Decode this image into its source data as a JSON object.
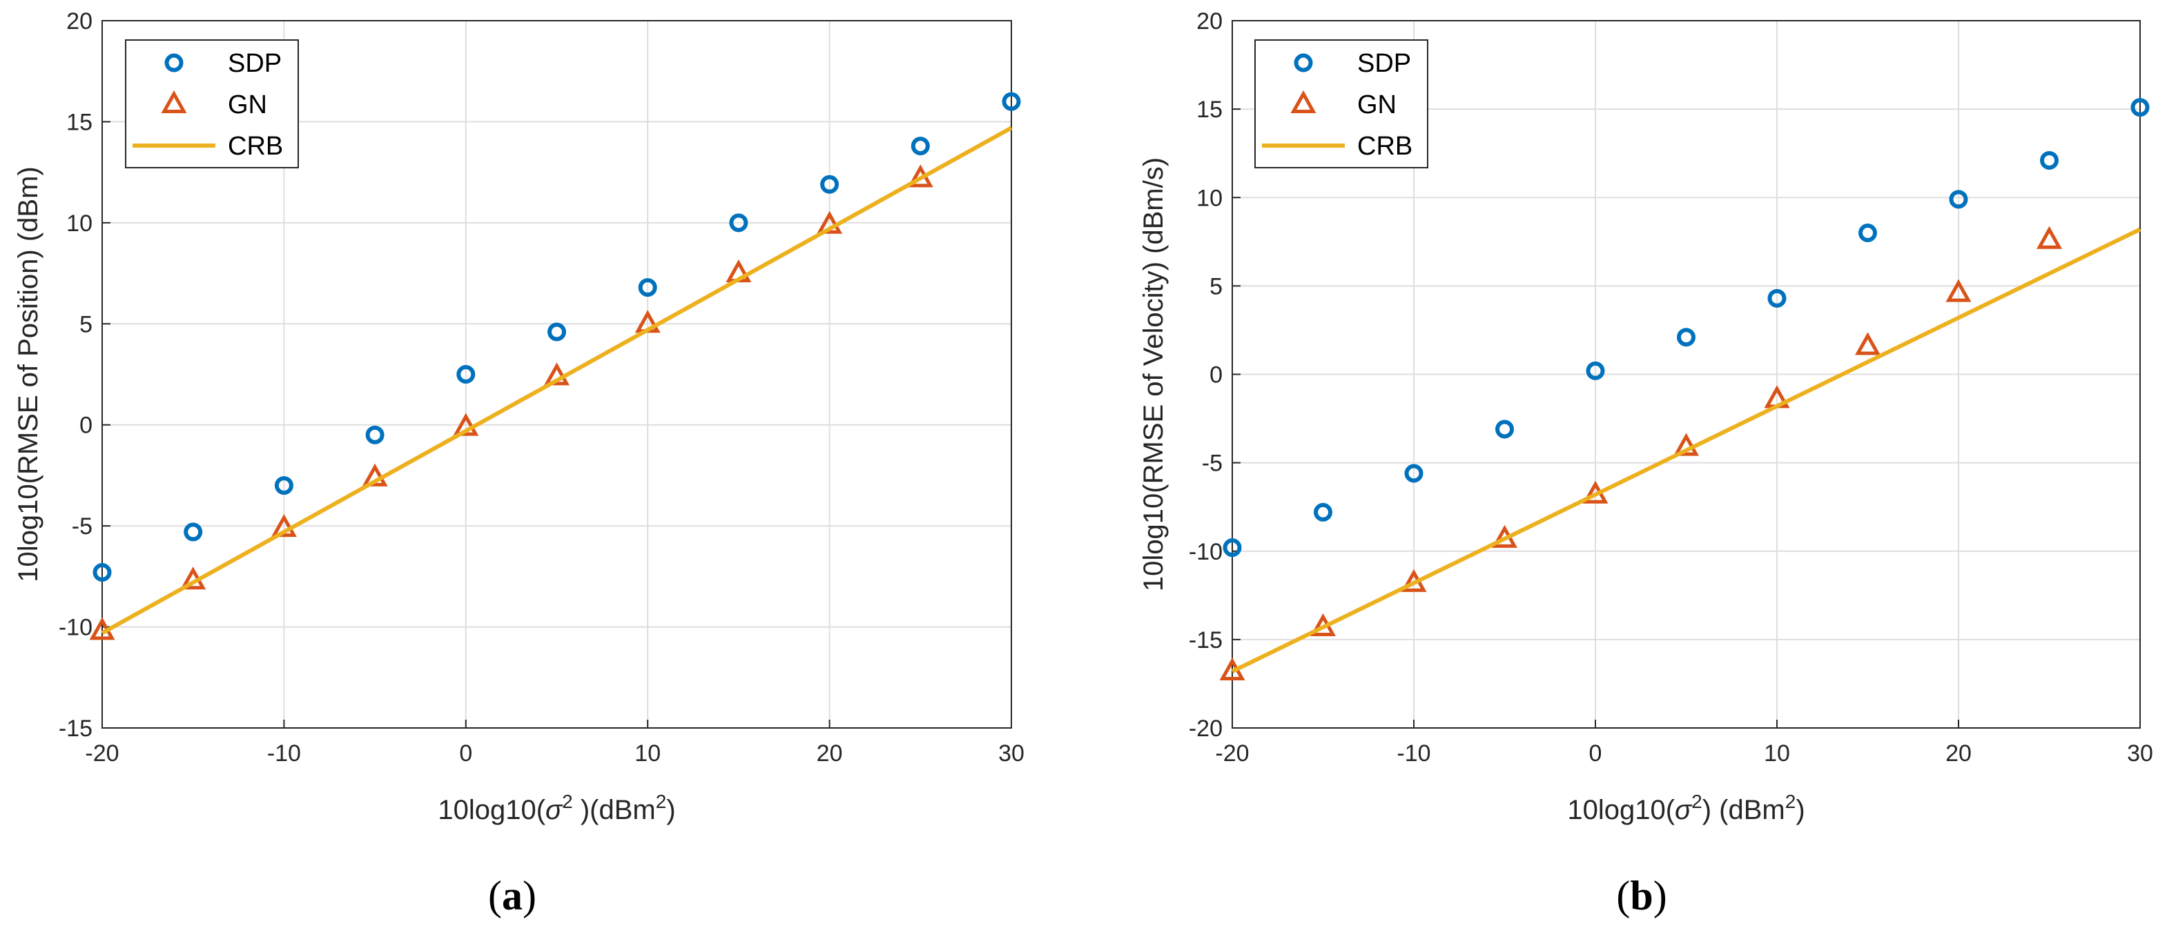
{
  "colors": {
    "sdp": "#0072BD",
    "gn": "#D95319",
    "crb": "#EDB120",
    "grid": "#dedede",
    "axis": "#262626"
  },
  "chart_data": [
    {
      "type": "scatter",
      "panel": "a",
      "caption": "(a)",
      "xlabel_prefix": "10log10(",
      "xlabel_symbol": "σ",
      "xlabel_exp": "2",
      "xlabel_suffix": " )(dBm",
      "xlabel_unit_exp": "2",
      "xlabel_close": ")",
      "ylabel": "10log10(RMSE of Position) (dBm)",
      "xlim": [
        -20,
        30
      ],
      "ylim": [
        -15,
        20
      ],
      "xticks": [
        -20,
        -10,
        0,
        10,
        20,
        30
      ],
      "yticks": [
        -15,
        -10,
        -5,
        0,
        5,
        10,
        15,
        20
      ],
      "xgrid": [
        -20,
        -10,
        0,
        10,
        20,
        30
      ],
      "grid": true,
      "legend_position": "top-left",
      "x": [
        -20,
        -15,
        -10,
        -5,
        0,
        5,
        10,
        15,
        20,
        25,
        30
      ],
      "series": [
        {
          "name": "SDP",
          "marker": "circle",
          "x": [
            -20,
            -15,
            -10,
            -5,
            0,
            5,
            10,
            15,
            20,
            25,
            30
          ],
          "values": [
            -7.3,
            -5.3,
            -3.0,
            -0.5,
            2.5,
            4.6,
            6.8,
            10.0,
            11.9,
            13.8,
            16.0
          ]
        },
        {
          "name": "GN",
          "marker": "triangle",
          "x": [
            -20,
            -15,
            -10,
            -5,
            0,
            5,
            10,
            15,
            20,
            25
          ],
          "values": [
            -10.2,
            -7.7,
            -5.1,
            -2.6,
            -0.1,
            2.4,
            5.0,
            7.5,
            9.9,
            12.2
          ]
        },
        {
          "name": "CRB",
          "marker": "line",
          "x": [
            -20,
            30
          ],
          "values": [
            -10.3,
            14.7
          ]
        }
      ]
    },
    {
      "type": "scatter",
      "panel": "b",
      "caption": "(b)",
      "xlabel_prefix": "10log10(",
      "xlabel_symbol": "σ",
      "xlabel_exp": "2",
      "xlabel_suffix": ") (dBm",
      "xlabel_unit_exp": "2",
      "xlabel_close": ")",
      "ylabel": "10log10(RMSE of Velocity) (dBm/s)",
      "xlim": [
        -20,
        30
      ],
      "ylim": [
        -20,
        20
      ],
      "xticks": [
        -20,
        -10,
        0,
        10,
        20,
        30
      ],
      "yticks": [
        -20,
        -15,
        -10,
        -5,
        0,
        5,
        10,
        15,
        20
      ],
      "xgrid": [
        -20,
        -10,
        0,
        10,
        20,
        30
      ],
      "grid": true,
      "legend_position": "top-left",
      "x": [
        -20,
        -15,
        -10,
        -5,
        0,
        5,
        10,
        15,
        20,
        25,
        30
      ],
      "series": [
        {
          "name": "SDP",
          "marker": "circle",
          "x": [
            -20,
            -15,
            -10,
            -5,
            0,
            5,
            10,
            15,
            20,
            25,
            30
          ],
          "values": [
            -9.8,
            -7.8,
            -5.6,
            -3.1,
            0.2,
            2.1,
            4.3,
            8.0,
            9.9,
            12.1,
            15.1
          ]
        },
        {
          "name": "GN",
          "marker": "triangle",
          "x": [
            -20,
            -15,
            -10,
            -5,
            0,
            5,
            10,
            15,
            20,
            25
          ],
          "values": [
            -16.8,
            -14.3,
            -11.8,
            -9.3,
            -6.8,
            -4.1,
            -1.4,
            1.6,
            4.6,
            7.6
          ]
        },
        {
          "name": "CRB",
          "marker": "line",
          "x": [
            -20,
            30
          ],
          "values": [
            -16.8,
            8.2
          ]
        }
      ]
    }
  ]
}
